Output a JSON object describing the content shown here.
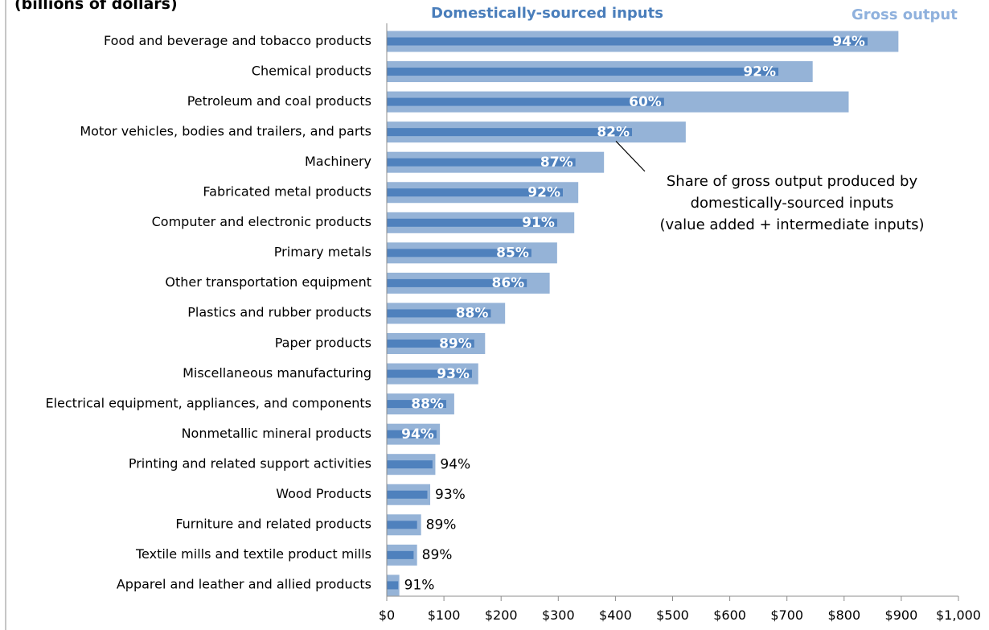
{
  "chart_data": {
    "type": "bar",
    "orientation": "horizontal",
    "subtitle": "(billions of dollars)",
    "categories": [
      "Food and beverage and tobacco products",
      "Chemical products",
      "Petroleum and coal products",
      "Motor vehicles, bodies and trailers, and parts",
      "Machinery",
      "Fabricated metal products",
      "Computer and electronic products",
      "Primary metals",
      "Other transportation equipment",
      "Plastics and rubber products",
      "Paper products",
      "Miscellaneous manufacturing",
      "Electrical equipment, appliances, and components",
      "Nonmetallic mineral products",
      "Printing and related support activities",
      "Wood Products",
      "Furniture and related products",
      "Textile mills and textile product mills",
      "Apparel and leather and allied products"
    ],
    "series": [
      {
        "name": "Gross output",
        "color": "#95b3d7",
        "values": [
          895,
          745,
          808,
          523,
          380,
          335,
          328,
          298,
          285,
          207,
          172,
          160,
          118,
          93,
          85,
          76,
          60,
          53,
          22
        ]
      },
      {
        "name": "Domestically-sourced inputs",
        "color": "#4f81bd",
        "values": [
          841,
          685,
          485,
          429,
          330,
          308,
          298,
          253,
          245,
          182,
          153,
          149,
          104,
          87,
          80,
          71,
          53,
          47,
          20
        ]
      }
    ],
    "shares": [
      "94%",
      "92%",
      "60%",
      "82%",
      "87%",
      "92%",
      "91%",
      "85%",
      "86%",
      "88%",
      "89%",
      "93%",
      "88%",
      "94%",
      "94%",
      "93%",
      "89%",
      "89%",
      "91%"
    ],
    "xticks": [
      "$0",
      "$100",
      "$200",
      "$300",
      "$400",
      "$500",
      "$600",
      "$700",
      "$800",
      "$900",
      "$1,000"
    ],
    "xlim": [
      0,
      1000
    ],
    "annotation": [
      "Share of gross output produced by",
      "domestically-sourced inputs",
      "(value added + intermediate inputs)"
    ],
    "annotation_points_to": "Motor vehicles, bodies and trailers, and parts",
    "legend": "top"
  }
}
